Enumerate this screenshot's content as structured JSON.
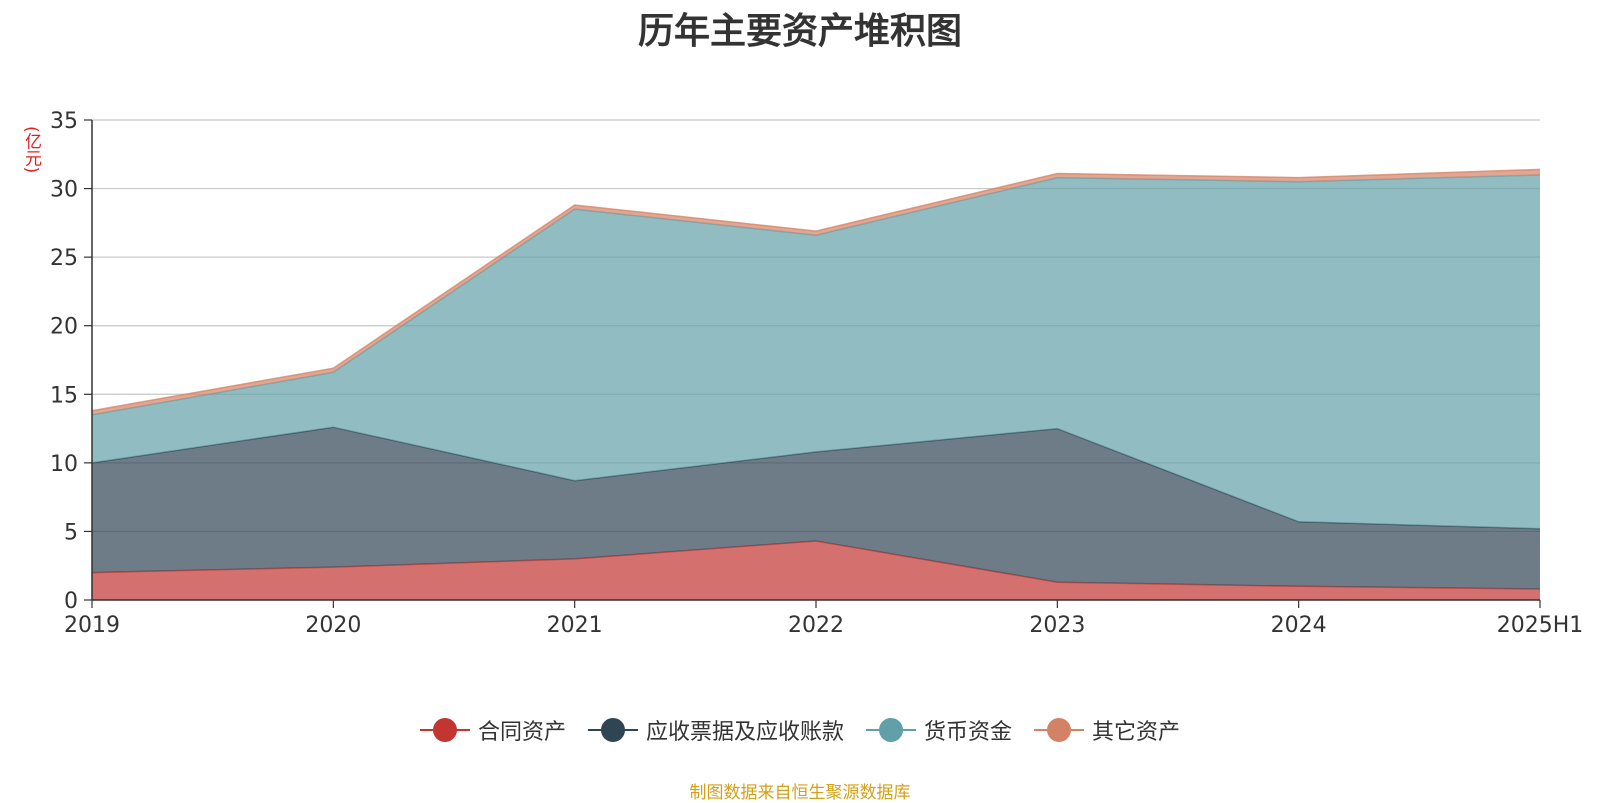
{
  "chart_data": {
    "type": "area",
    "stacked": true,
    "title": "历年主要资产堆积图",
    "ylabel": "(亿元)",
    "xlabel": "",
    "categories": [
      "2019",
      "2020",
      "2021",
      "2022",
      "2023",
      "2024",
      "2025H1"
    ],
    "ylim": [
      0,
      35
    ],
    "yticks": [
      0,
      5,
      10,
      15,
      20,
      25,
      30,
      35
    ],
    "grid": true,
    "legend_position": "bottom-center",
    "series": [
      {
        "name": "合同资产",
        "color": "#c23531",
        "values": [
          2.0,
          2.4,
          3.0,
          4.3,
          1.3,
          1.0,
          0.8
        ]
      },
      {
        "name": "应收票据及应收账款",
        "color": "#2f4554",
        "values": [
          8.0,
          10.2,
          5.7,
          6.5,
          11.2,
          4.7,
          4.4
        ]
      },
      {
        "name": "货币资金",
        "color": "#61a0a8",
        "values": [
          3.5,
          4.0,
          19.8,
          15.8,
          18.3,
          24.8,
          25.8
        ]
      },
      {
        "name": "其它资产",
        "color": "#d48265",
        "values": [
          0.3,
          0.3,
          0.3,
          0.3,
          0.3,
          0.3,
          0.4
        ]
      }
    ]
  },
  "source": "制图数据来自恒生聚源数据库"
}
